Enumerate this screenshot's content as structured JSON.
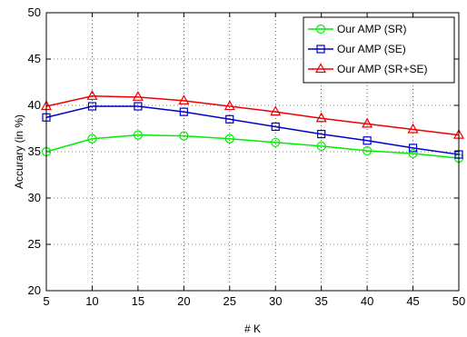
{
  "chart_data": {
    "type": "line",
    "x": [
      5,
      10,
      15,
      20,
      25,
      30,
      35,
      40,
      45,
      50
    ],
    "xlabel": "# K",
    "ylabel": "Accurary (in %)",
    "xlim": [
      5,
      50
    ],
    "ylim": [
      20,
      50
    ],
    "xticks": [
      5,
      10,
      15,
      20,
      25,
      30,
      35,
      40,
      45,
      50
    ],
    "yticks": [
      20,
      25,
      30,
      35,
      40,
      45,
      50
    ],
    "grid": true,
    "legend_position": "top-right",
    "series": [
      {
        "name": "Our AMP (SR)",
        "color": "#00ee00",
        "marker": "circle",
        "values": [
          35.0,
          36.4,
          36.8,
          36.7,
          36.4,
          36.0,
          35.6,
          35.1,
          34.8,
          34.3
        ]
      },
      {
        "name": "Our AMP (SE)",
        "color": "#0000cc",
        "marker": "square",
        "values": [
          38.7,
          39.9,
          39.9,
          39.3,
          38.5,
          37.7,
          36.9,
          36.2,
          35.4,
          34.7
        ]
      },
      {
        "name": "Our AMP (SR+SE)",
        "color": "#ee0000",
        "marker": "triangle",
        "values": [
          39.9,
          41.0,
          40.9,
          40.5,
          39.9,
          39.3,
          38.6,
          38.0,
          37.4,
          36.8
        ]
      }
    ]
  }
}
